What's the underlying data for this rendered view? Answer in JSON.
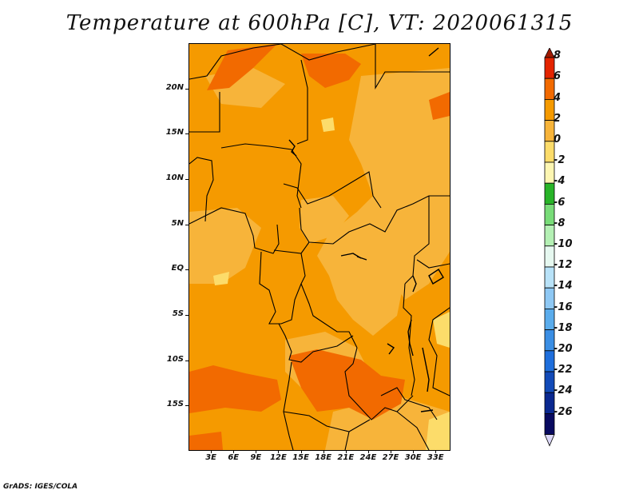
{
  "title": "Temperature at 600hPa [C], VT: 2020061315",
  "credit": "GrADS: IGES/COLA",
  "map": {
    "lat_labels": [
      {
        "label": "20N",
        "lat": 20
      },
      {
        "label": "15N",
        "lat": 15
      },
      {
        "label": "10N",
        "lat": 10
      },
      {
        "label": "5N",
        "lat": 5
      },
      {
        "label": "EQ",
        "lat": 0
      },
      {
        "label": "5S",
        "lat": -5
      },
      {
        "label": "10S",
        "lat": -10
      },
      {
        "label": "15S",
        "lat": -15
      }
    ],
    "lon_labels": [
      {
        "label": "3E",
        "lon": 3
      },
      {
        "label": "6E",
        "lon": 6
      },
      {
        "label": "9E",
        "lon": 9
      },
      {
        "label": "12E",
        "lon": 12
      },
      {
        "label": "15E",
        "lon": 15
      },
      {
        "label": "18E",
        "lon": 18
      },
      {
        "label": "21E",
        "lon": 21
      },
      {
        "label": "24E",
        "lon": 24
      },
      {
        "label": "27E",
        "lon": 27
      },
      {
        "label": "30E",
        "lon": 30
      },
      {
        "label": "33E",
        "lon": 33
      }
    ],
    "lon_range": [
      0,
      35
    ],
    "lat_range": [
      -20,
      25
    ]
  },
  "colorbar": {
    "labels": [
      "8",
      "6",
      "4",
      "2",
      "0",
      "-2",
      "-4",
      "-6",
      "-8",
      "-10",
      "-12",
      "-14",
      "-16",
      "-18",
      "-20",
      "-22",
      "-24",
      "-26"
    ],
    "colors": [
      "#a01a00",
      "#e42400",
      "#f26a00",
      "#f59a00",
      "#f7b43a",
      "#fcdc6a",
      "#fdf6b2",
      "#28b428",
      "#78dc78",
      "#b4f0b4",
      "#e6f8f0",
      "#b8e2f8",
      "#8ec8f4",
      "#5aacec",
      "#3a8ee4",
      "#1e6edc",
      "#124ab8",
      "#0a2890",
      "#080a60",
      "#dcd8f8"
    ]
  },
  "colors": {
    "level_2_4": "#f59a00",
    "level_4_6": "#f26a00",
    "level_0_2": "#f7b43a",
    "level_m2_0": "#fcdc6a",
    "border": "#000000"
  }
}
